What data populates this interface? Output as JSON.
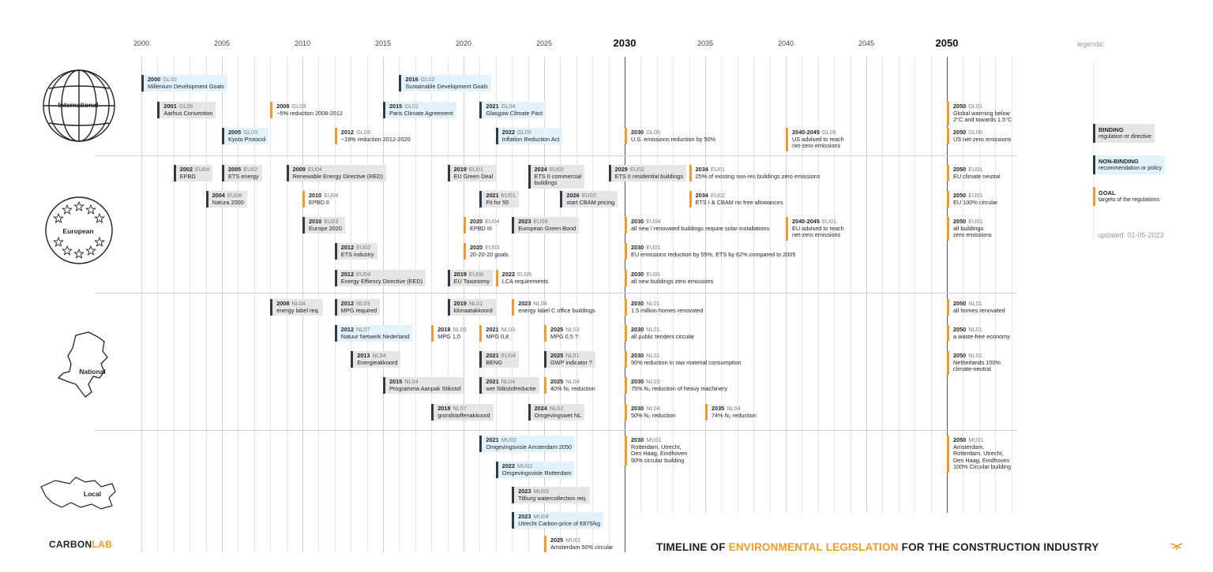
{
  "years": [
    "2000",
    "2005",
    "2010",
    "2015",
    "2020",
    "2025",
    "2030",
    "2035",
    "2040",
    "2045",
    "2050"
  ],
  "categories": {
    "international": "International",
    "european": "European",
    "national": "National",
    "local": "Local"
  },
  "legend": {
    "title": "legenda:",
    "binding": {
      "label": "BINDING",
      "desc": "regulation or directive"
    },
    "nonbinding": {
      "label": "NON-BINDING",
      "desc": "recommendation or policy"
    },
    "goal": {
      "label": "GOAL",
      "desc": "targets of the regulations"
    },
    "updated": "updated: 01-05-2023"
  },
  "brand": {
    "carbon": "CARBON",
    "lab": "LAB"
  },
  "title": {
    "pre": "TIMELINE OF ",
    "highlight": "ENVIRONMENTAL LEGISLATION",
    "post": " FOR THE CONSTRUCTION INDUSTRY"
  },
  "colors": {
    "binding": "#e6e6e6",
    "nonbinding": "#e3f3fc",
    "goal": "#f39a2e",
    "bar": "#2f3a44"
  },
  "chart_data": {
    "type": "timeline",
    "title": "TIMELINE OF ENVIRONMENTAL LEGISLATION FOR THE CONSTRUCTION INDUSTRY",
    "xlim": [
      2000,
      2050
    ],
    "events": [
      {
        "year": "2000",
        "code": "GL02",
        "desc": "Millenium Development Goals",
        "type": "nonbinding",
        "pos": 2000,
        "row": 1
      },
      {
        "year": "2016",
        "code": "GL02",
        "desc": "Sustainable Development Goals",
        "type": "nonbinding",
        "pos": 2016,
        "row": 1
      },
      {
        "year": "2001",
        "code": "GL06",
        "desc": "Aarhus Convention",
        "type": "binding",
        "pos": 2001,
        "row": 2
      },
      {
        "year": "2008",
        "code": "GL03",
        "desc": "~5% reduction 2008-2012",
        "type": "goal",
        "pos": 2008,
        "row": 2
      },
      {
        "year": "2015",
        "code": "GL01",
        "desc": "Paris Climate Agreement",
        "type": "nonbinding",
        "pos": 2015,
        "row": 2
      },
      {
        "year": "2021",
        "code": "GL04",
        "desc": "Glasgow Climate Pact",
        "type": "nonbinding",
        "pos": 2021,
        "row": 2
      },
      {
        "year": "2050",
        "code": "GL01",
        "desc": "Global warming below\n2°C and towards 1.5°C",
        "type": "goal",
        "pos": 2050,
        "row": 2
      },
      {
        "year": "2005",
        "code": "GL03",
        "desc": "Kyoto Protocol",
        "type": "nonbinding",
        "pos": 2005,
        "row": 3
      },
      {
        "year": "2012",
        "code": "GL03",
        "desc": "~18% reduction 2012-2020",
        "type": "goal",
        "pos": 2012,
        "row": 3
      },
      {
        "year": "2022",
        "code": "GL05",
        "desc": "Inflation Reduction Act",
        "type": "nonbinding",
        "pos": 2022,
        "row": 3
      },
      {
        "year": "2030",
        "code": "GL05",
        "desc": "U.S. emissions reduction by 50%",
        "type": "goal",
        "pos": 2030,
        "row": 3
      },
      {
        "year": "2040-2045",
        "code": "GL05",
        "desc": "US advised to reach\nnet-zero emissions",
        "type": "goal",
        "pos": 2040,
        "row": 3
      },
      {
        "year": "2050",
        "code": "GL05",
        "desc": "US net-zero emissions",
        "type": "goal",
        "pos": 2050,
        "row": 3
      },
      {
        "year": "2002",
        "code": "EU04",
        "desc": "EPBD",
        "type": "binding",
        "pos": 2002,
        "row": 4
      },
      {
        "year": "2005",
        "code": "EU02",
        "desc": "ETS energy",
        "type": "binding",
        "pos": 2005,
        "row": 4
      },
      {
        "year": "2009",
        "code": "EU04",
        "desc": "Renewable Energy Directive (RED)",
        "type": "binding",
        "pos": 2009,
        "row": 4
      },
      {
        "year": "2019",
        "code": "EU01",
        "desc": "EU Green Deal",
        "type": "binding",
        "pos": 2019,
        "row": 4
      },
      {
        "year": "2024",
        "code": "EU02",
        "desc": "ETS II commercial\nbuildings",
        "type": "binding",
        "pos": 2024,
        "row": 4
      },
      {
        "year": "2029",
        "code": "EU02",
        "desc": "ETS II residential buildings",
        "type": "binding",
        "pos": 2029,
        "row": 4
      },
      {
        "year": "2034",
        "code": "EU01",
        "desc": "25% of existing non-res buildings zero emissions",
        "type": "goal",
        "pos": 2034,
        "row": 4
      },
      {
        "year": "2050",
        "code": "EU01",
        "desc": "EU climate neutral",
        "type": "goal",
        "pos": 2050,
        "row": 4
      },
      {
        "year": "2004",
        "code": "EU08",
        "desc": "Natura 2000",
        "type": "binding",
        "pos": 2004,
        "row": 5
      },
      {
        "year": "2010",
        "code": "EU04",
        "desc": "EPBD II",
        "type": "goal",
        "pos": 2010,
        "row": 5
      },
      {
        "year": "2021",
        "code": "EU01",
        "desc": "Fit for 55",
        "type": "binding",
        "pos": 2021,
        "row": 5
      },
      {
        "year": "2026",
        "code": "EU02",
        "desc": "start CBAM pricing",
        "type": "binding",
        "pos": 2026,
        "row": 5
      },
      {
        "year": "2034",
        "code": "EU02",
        "desc": "ETS I & CBAM no free allowances",
        "type": "goal",
        "pos": 2034,
        "row": 5
      },
      {
        "year": "2050",
        "code": "EU01",
        "desc": "EU 100% circular",
        "type": "goal",
        "pos": 2050,
        "row": 5
      },
      {
        "year": "2010",
        "code": "EU03",
        "desc": "Europe 2020",
        "type": "binding",
        "pos": 2010,
        "row": 6
      },
      {
        "year": "2020",
        "code": "EU04",
        "desc": "EPBD III",
        "type": "goal",
        "pos": 2020,
        "row": 6
      },
      {
        "year": "2023",
        "code": "EU06",
        "desc": "European Green Bond",
        "type": "binding",
        "pos": 2023,
        "row": 6
      },
      {
        "year": "2030",
        "code": "EU04",
        "desc": "all new / renovated buildings require solar-installations",
        "type": "goal",
        "pos": 2030,
        "row": 6
      },
      {
        "year": "2040-2045",
        "code": "EU01",
        "desc": "EU advised to reach\nnet-zero emissions",
        "type": "goal",
        "pos": 2040,
        "row": 6
      },
      {
        "year": "2050",
        "code": "EU01",
        "desc": "all buildings\nzero emissions",
        "type": "goal",
        "pos": 2050,
        "row": 6
      },
      {
        "year": "2012",
        "code": "EU02",
        "desc": "ETS industry",
        "type": "binding",
        "pos": 2012,
        "row": 7
      },
      {
        "year": "2020",
        "code": "EU03",
        "desc": "20-20-20 goals",
        "type": "goal",
        "pos": 2020,
        "row": 7
      },
      {
        "year": "2030",
        "code": "EU01",
        "desc": "EU emissions reduction by 55%, ETS by 62% compared to 2005",
        "type": "goal",
        "pos": 2030,
        "row": 7
      },
      {
        "year": "2012",
        "code": "EU04",
        "desc": "Energy Effiency Directive (EED)",
        "type": "binding",
        "pos": 2012,
        "row": 8
      },
      {
        "year": "2019",
        "code": "EU06",
        "desc": "EU Taxonomy",
        "type": "binding",
        "pos": 2019,
        "row": 8
      },
      {
        "year": "2022",
        "code": "EU05",
        "desc": "LCA requirements",
        "type": "goal",
        "pos": 2022,
        "row": 8
      },
      {
        "year": "2030",
        "code": "EU01",
        "desc": "all new buildings zero emissions",
        "type": "goal",
        "pos": 2030,
        "row": 8
      },
      {
        "year": "2008",
        "code": "NL04",
        "desc": "energy label req.",
        "type": "binding",
        "pos": 2008,
        "row": 9
      },
      {
        "year": "2012",
        "code": "NL03",
        "desc": "MPG required",
        "type": "binding",
        "pos": 2012,
        "row": 9
      },
      {
        "year": "2019",
        "code": "NL01",
        "desc": "klimaatakkoord",
        "type": "binding",
        "pos": 2019,
        "row": 9
      },
      {
        "year": "2023",
        "code": "NL04",
        "desc": "energy label C office buildings",
        "type": "goal",
        "pos": 2023,
        "row": 9
      },
      {
        "year": "2030",
        "code": "NL01",
        "desc": "1,5 million homes renovated",
        "type": "goal",
        "pos": 2030,
        "row": 9
      },
      {
        "year": "2050",
        "code": "NL01",
        "desc": "all homes renovated",
        "type": "goal",
        "pos": 2050,
        "row": 9
      },
      {
        "year": "2012",
        "code": "NL07",
        "desc": "Natuur Netwerk Nederland",
        "type": "nonbinding",
        "pos": 2012,
        "row": 10
      },
      {
        "year": "2018",
        "code": "NL03",
        "desc": "MPG 1,0",
        "type": "goal",
        "pos": 2018,
        "row": 10
      },
      {
        "year": "2021",
        "code": "NL03",
        "desc": "MPG 0,8",
        "type": "goal",
        "pos": 2021,
        "row": 10
      },
      {
        "year": "2025",
        "code": "NL03",
        "desc": "MPG 0,5 ?",
        "type": "goal",
        "pos": 2025,
        "row": 10
      },
      {
        "year": "2030",
        "code": "NL01",
        "desc": "all public tenders circular",
        "type": "goal",
        "pos": 2030,
        "row": 10
      },
      {
        "year": "2050",
        "code": "NL01",
        "desc": "a waste-free economy",
        "type": "goal",
        "pos": 2050,
        "row": 10
      },
      {
        "year": "2013",
        "code": "NL04",
        "desc": "Energieakkoord",
        "type": "binding",
        "pos": 2013,
        "row": 11
      },
      {
        "year": "2021",
        "code": "EU04",
        "desc": "BENG",
        "type": "binding",
        "pos": 2021,
        "row": 11
      },
      {
        "year": "2025",
        "code": "NL01",
        "desc": "GWP indicator ?",
        "type": "binding",
        "pos": 2025,
        "row": 11
      },
      {
        "year": "2030",
        "code": "NL01",
        "desc": "50% reduction in raw material consumption",
        "type": "goal",
        "pos": 2030,
        "row": 11
      },
      {
        "year": "2050",
        "code": "NL01",
        "desc": "Netherlands 100%\nclimate-neutral",
        "type": "goal",
        "pos": 2050,
        "row": 11
      },
      {
        "year": "2015",
        "code": "NL04",
        "desc": "Programma Aanpak Stikstof",
        "type": "binding",
        "pos": 2015,
        "row": 12
      },
      {
        "year": "2021",
        "code": "NL04",
        "desc": "wet Stikstofreductie",
        "type": "binding",
        "pos": 2021,
        "row": 12
      },
      {
        "year": "2025",
        "code": "NL04",
        "desc": "40% N₂ reduction",
        "type": "goal",
        "pos": 2025,
        "row": 12
      },
      {
        "year": "2030",
        "code": "NL03",
        "desc": "75% N₂ reduction of heavy machinery",
        "type": "goal",
        "pos": 2030,
        "row": 12
      },
      {
        "year": "2018",
        "code": "NL07",
        "desc": "grondstoffenakkoord",
        "type": "binding",
        "pos": 2018,
        "row": 13
      },
      {
        "year": "2024",
        "code": "NL02",
        "desc": "Omgevingswet NL",
        "type": "binding",
        "pos": 2024,
        "row": 13
      },
      {
        "year": "2030",
        "code": "NL04",
        "desc": "50% N₂ reduction",
        "type": "goal",
        "pos": 2030,
        "row": 13
      },
      {
        "year": "2035",
        "code": "NL04",
        "desc": "74% N₂ reduction",
        "type": "goal",
        "pos": 2035,
        "row": 13
      },
      {
        "year": "2021",
        "code": "MU02",
        "desc": "Omgevingsvisie Amsterdam 2050",
        "type": "nonbinding",
        "pos": 2021,
        "row": 14
      },
      {
        "year": "2030",
        "code": "MU01",
        "desc": "Rotterdam, Utrecht,\nDen Haag, Eindhoven\n50% circular building",
        "type": "goal",
        "pos": 2030,
        "row": 14
      },
      {
        "year": "2050",
        "code": "MU01",
        "desc": "Amsterdam,\nRotterdam, Utrecht,\nDen Haag, Eindhoven\n100% Circular building",
        "type": "goal",
        "pos": 2050,
        "row": 14
      },
      {
        "year": "2022",
        "code": "MU02",
        "desc": "Omgevingsvisie Rotterdam",
        "type": "nonbinding",
        "pos": 2022,
        "row": 15
      },
      {
        "year": "2023",
        "code": "MU03",
        "desc": "Tilburg watercollection req.",
        "type": "binding",
        "pos": 2023,
        "row": 16
      },
      {
        "year": "2023",
        "code": "MU04",
        "desc": "Utrecht Carbon-price of €875/kg",
        "type": "nonbinding",
        "pos": 2023,
        "row": 17
      },
      {
        "year": "2025",
        "code": "MU01",
        "desc": "Amsterdam 50% circular",
        "type": "goal",
        "pos": 2025,
        "row": 18
      }
    ]
  }
}
